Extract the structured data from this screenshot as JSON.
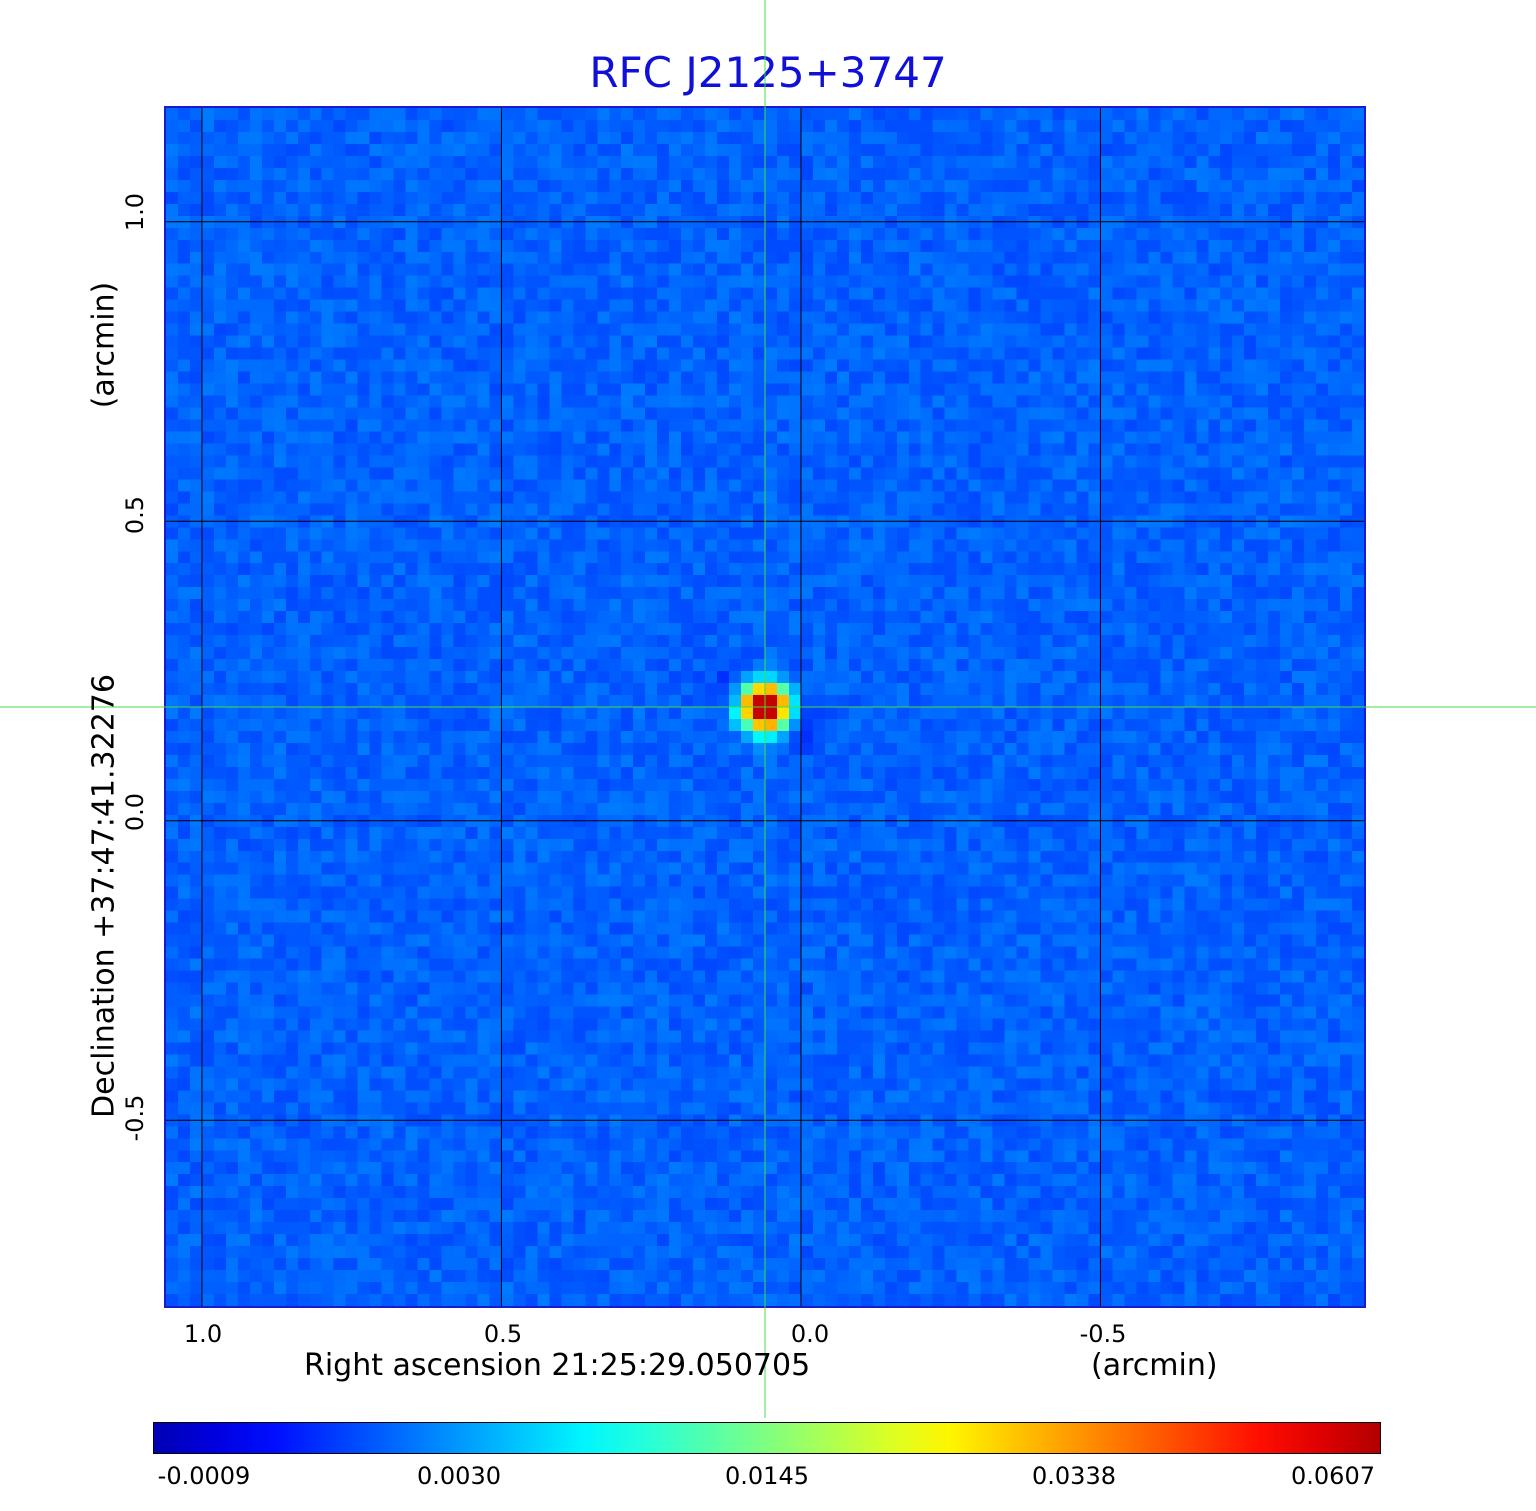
{
  "chart_data": {
    "type": "heatmap",
    "title": "RFC J2125+3747",
    "xlabel": "Right ascension  21:25:29.050705",
    "xunit": "(arcmin)",
    "ylabel": "Declination  +37:47:41.32276",
    "yunit": "(arcmin)",
    "x_ticks": [
      "1.0",
      "0.5",
      "0.0",
      "-0.5"
    ],
    "x_tick_values": [
      1.0,
      0.5,
      0.0,
      -0.5
    ],
    "y_ticks": [
      "1.0",
      "0.5",
      "0.0",
      "-0.5"
    ],
    "y_tick_values": [
      1.0,
      0.5,
      0.0,
      -0.5
    ],
    "xlim": [
      1.06,
      -0.94
    ],
    "ylim": [
      -0.81,
      1.19
    ],
    "grid": true,
    "crosshair": {
      "x": 0.06,
      "y": 0.19,
      "color": "#44dd44"
    },
    "source": {
      "x": 0.06,
      "y": 0.19,
      "peak": 0.0607
    },
    "colorbar": {
      "ticks": [
        "-0.0009",
        "0.0030",
        "0.0145",
        "0.0338",
        "0.0607"
      ],
      "tick_values": [
        -0.0009,
        0.003,
        0.0145,
        0.0338,
        0.0607
      ],
      "range": [
        -0.0009,
        0.0607
      ],
      "colormap": "jet"
    }
  },
  "colors": {
    "title": "#1010d8",
    "frame": "#1a1ad0",
    "grid": "#000000",
    "crosshair": "#44dd44"
  }
}
